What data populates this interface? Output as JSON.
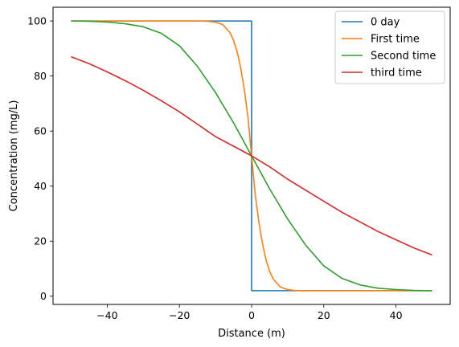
{
  "chart_data": {
    "type": "line",
    "title": "",
    "xlabel": "Distance (m)",
    "ylabel": "Concentration (mg/L)",
    "xlim": [
      -55,
      55
    ],
    "ylim": [
      -3,
      105
    ],
    "xticks": [
      -40,
      -20,
      0,
      20,
      40
    ],
    "yticks": [
      0,
      20,
      40,
      60,
      80,
      100
    ],
    "grid": false,
    "legend_position": "top-right",
    "series": [
      {
        "name": "0 day",
        "color": "#1f77b4",
        "x": [
          -50,
          -45,
          -40,
          -35,
          -30,
          -25,
          -20,
          -15,
          -10,
          -5,
          0,
          0,
          5,
          10,
          15,
          20,
          25,
          30,
          35,
          40,
          45,
          50
        ],
        "y": [
          100,
          100,
          100,
          100,
          100,
          100,
          100,
          100,
          100,
          100,
          100,
          2,
          2,
          2,
          2,
          2,
          2,
          2,
          2,
          2,
          2,
          2
        ]
      },
      {
        "name": "First time",
        "color": "#ff7f0e",
        "x": [
          -50,
          -40,
          -30,
          -20,
          -15,
          -12,
          -10,
          -8,
          -6,
          -5,
          -4,
          -3,
          -2,
          -1,
          0,
          1,
          2,
          3,
          4,
          5,
          6,
          8,
          10,
          12,
          15,
          20,
          30,
          40,
          50
        ],
        "y": [
          100,
          100,
          100,
          100,
          100,
          99.9,
          99.6,
          98.7,
          95.8,
          93.0,
          88.8,
          82.8,
          74.9,
          65.0,
          51.0,
          37.0,
          27.1,
          19.2,
          13.2,
          9.0,
          6.2,
          3.3,
          2.4,
          2.1,
          2.0,
          2,
          2,
          2,
          2
        ]
      },
      {
        "name": "Second time",
        "color": "#2ca02c",
        "x": [
          -50,
          -45,
          -40,
          -35,
          -30,
          -25,
          -20,
          -15,
          -10,
          -5,
          0,
          5,
          10,
          15,
          20,
          25,
          30,
          35,
          40,
          45,
          50
        ],
        "y": [
          100,
          99.9,
          99.6,
          99.0,
          97.9,
          95.5,
          91.0,
          83.5,
          74.0,
          63.0,
          51.0,
          39.0,
          28.0,
          18.5,
          11.0,
          6.5,
          4.1,
          2.9,
          2.4,
          2.1,
          2.0
        ]
      },
      {
        "name": "third time",
        "color": "#d62728",
        "x": [
          -50,
          -45,
          -40,
          -35,
          -30,
          -25,
          -20,
          -15,
          -10,
          -5,
          0,
          5,
          10,
          15,
          20,
          25,
          30,
          35,
          40,
          45,
          50
        ],
        "y": [
          87.0,
          84.5,
          81.5,
          78.3,
          74.8,
          71.0,
          67.0,
          62.5,
          58.0,
          54.5,
          51.0,
          47.0,
          42.5,
          38.5,
          34.5,
          30.5,
          27.0,
          23.5,
          20.5,
          17.5,
          15.0
        ]
      }
    ]
  }
}
